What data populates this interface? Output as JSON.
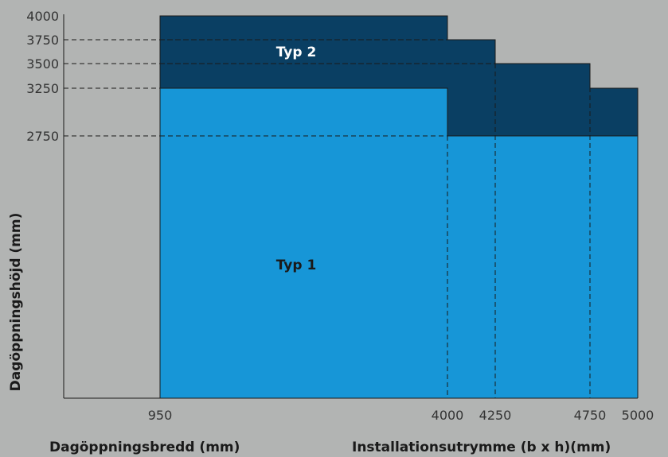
{
  "chart_data": {
    "type": "area",
    "xlabel": "Dagöppningsbredd (mm)",
    "xlabel_secondary": "Installationsutrymme (b x h)(mm)",
    "ylabel": "Dagöppningshöjd (mm)",
    "x_ticks": [
      "950",
      "4000",
      "4250",
      "4750",
      "5000"
    ],
    "y_ticks": [
      "4000",
      "3750",
      "3500",
      "3250",
      "2750"
    ],
    "regions": [
      {
        "name": "Typ 1",
        "color": "#1796d7",
        "x_from": 950,
        "x_to": 5000,
        "steps": [
          {
            "x_to": 4000,
            "height": 3250
          },
          {
            "x_to": 5000,
            "height": 2750
          }
        ]
      },
      {
        "name": "Typ 2",
        "color": "#0a3f63",
        "x_from": 950,
        "x_to": 5000,
        "steps": [
          {
            "x_to": 4000,
            "height": 4000
          },
          {
            "x_to": 4250,
            "height": 3750
          },
          {
            "x_to": 4750,
            "height": 3500
          },
          {
            "x_to": 5000,
            "height": 3250
          }
        ]
      }
    ],
    "colors": {
      "background": "#b2b4b3",
      "axis": "#1a1a1a",
      "guide": "#1a1a1a",
      "typ1_label": "#1a1a1a",
      "typ2_label": "#ffffff"
    }
  }
}
